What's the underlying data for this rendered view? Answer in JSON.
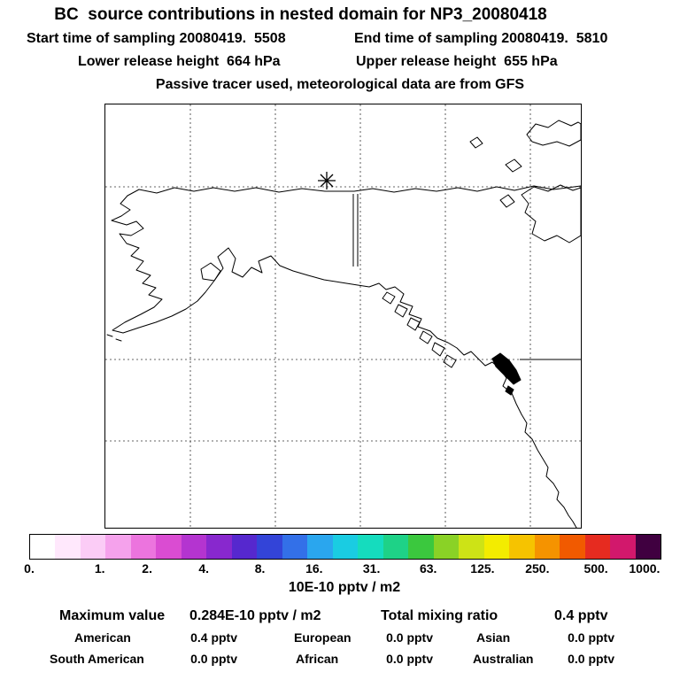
{
  "chart_data": {
    "type": "heatmap",
    "title": "BC  source contributions in nested domain for NP3_20080418",
    "subtitle_lines": {
      "sampling_start": "Start time of sampling 20080419.  5508",
      "sampling_end": "End time of sampling 20080419.  5810",
      "lower_release_height": "Lower release height  664 hPa",
      "upper_release_height": "Upper release height  655 hPa",
      "tracer_note": "Passive tracer used, meteorological data are from GFS"
    },
    "map": {
      "release_marker": {
        "symbol": "asterisk",
        "x_pct": 46.6,
        "y_pct": 18.0
      }
    },
    "colorbar": {
      "label": "10E-10 pptv / m2",
      "tick_labels": [
        "0.",
        "1.",
        "2.",
        "4.",
        "8.",
        "16.",
        "31.",
        "63.",
        "125.",
        "250.",
        "500.",
        "1000."
      ],
      "tick_positions_pct": [
        0,
        11.2,
        18.7,
        27.7,
        36.6,
        45.2,
        54.3,
        63.3,
        71.9,
        80.6,
        89.9,
        97.6
      ],
      "colors": [
        "#ffffff",
        "#ffe8fc",
        "#fbccf6",
        "#f5a2ec",
        "#ec74de",
        "#da4cd2",
        "#b434d0",
        "#8828ce",
        "#5628ce",
        "#3344d8",
        "#3370e8",
        "#2aa6ee",
        "#1acce2",
        "#15dcbe",
        "#1ed287",
        "#3bc83e",
        "#8ad226",
        "#cde316",
        "#f3ec00",
        "#f6c300",
        "#f59300",
        "#f15a00",
        "#e62b20",
        "#d2186c",
        "#400040"
      ]
    },
    "stats": {
      "maximum_value_label": "Maximum value",
      "maximum_value": "0.284E-10 pptv / m2",
      "total_mixing_ratio_label": "Total mixing ratio",
      "total_mixing_ratio": "0.4 pptv",
      "regions": [
        {
          "name": "American",
          "value": "0.4 pptv"
        },
        {
          "name": "European",
          "value": "0.0 pptv"
        },
        {
          "name": "Asian",
          "value": "0.0 pptv"
        },
        {
          "name": "South American",
          "value": "0.0 pptv"
        },
        {
          "name": "African",
          "value": "0.0 pptv"
        },
        {
          "name": "Australian",
          "value": "0.0 pptv"
        }
      ]
    }
  }
}
